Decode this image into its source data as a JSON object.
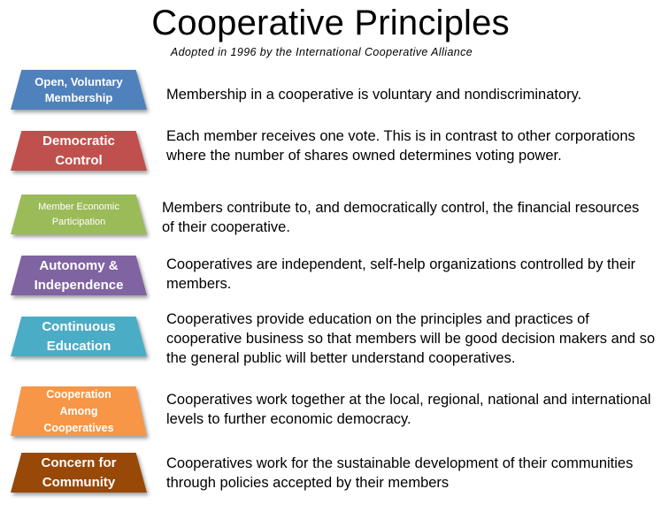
{
  "title": "Cooperative Principles",
  "subtitle": "Adopted  in 1996 by the International  Cooperative  Alliance",
  "principles": [
    {
      "label": "Open, Voluntary Membership",
      "color": "#4f81bd",
      "description": "Membership in a cooperative is voluntary and nondiscriminatory."
    },
    {
      "label": "Democratic Control",
      "color": "#c0504d",
      "description": "Each member receives one vote.  This is in contrast to other corporations where the number of shares owned determines voting power."
    },
    {
      "label": "Member Economic Participation",
      "color": "#9bbb59",
      "description": "Members contribute to, and democratically control, the financial resources of their cooperative."
    },
    {
      "label": "Autonomy  & Independence",
      "color": "#8064a2",
      "description": "Cooperatives are independent, self-help organizations controlled by their members."
    },
    {
      "label": "Continuous Education",
      "color": "#4bacc6",
      "description": "Cooperatives provide education on the principles and practices of cooperative business so that members will be good decision makers and so the general public will better understand cooperatives."
    },
    {
      "label": "Cooperation Among Cooperatives",
      "color": "#f79646",
      "description": "Cooperatives work together at the local, regional, national and international levels to further economic democracy."
    },
    {
      "label": "Concern for Community",
      "color": "#984807",
      "description": "Cooperatives work for the sustainable development of their communities through policies accepted by their members"
    }
  ]
}
